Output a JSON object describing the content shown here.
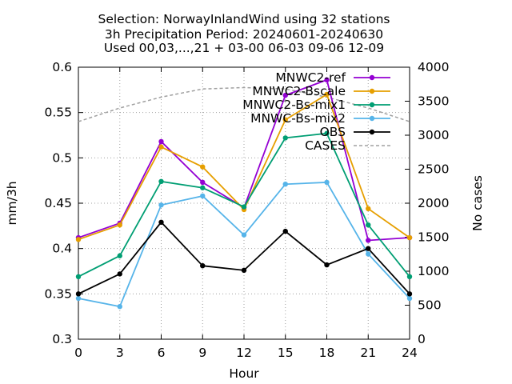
{
  "chart_data": {
    "type": "line",
    "title_lines": [
      "Selection: NorwayInlandWind using    32 stations",
      "3h Precipitation   Period: 20240601-20240630",
      "Used 00,03,...,21 + 03-00 06-03 09-06 12-09"
    ],
    "xlabel": "Hour",
    "ylabel": "mm/3h",
    "y2label": "No cases",
    "x": [
      0,
      3,
      6,
      9,
      12,
      15,
      18,
      21,
      24
    ],
    "xlim": [
      0,
      24
    ],
    "ylim": [
      0.3,
      0.6
    ],
    "y2lim": [
      0,
      4000
    ],
    "xticks": [
      0,
      3,
      6,
      9,
      12,
      15,
      18,
      21,
      24
    ],
    "yticks": [
      0.3,
      0.35,
      0.4,
      0.45,
      0.5,
      0.55,
      0.6
    ],
    "ytick_labels": [
      "0.3",
      "0.35",
      "0.4",
      "0.45",
      "0.5",
      "0.55",
      "0.6"
    ],
    "y2ticks": [
      0,
      500,
      1000,
      1500,
      2000,
      2500,
      3000,
      3500,
      4000
    ],
    "grid": true,
    "legend_position": "top-right",
    "series": [
      {
        "name": "MNWC2-ref",
        "color": "#9400d3",
        "values": [
          0.412,
          0.428,
          0.518,
          0.473,
          0.445,
          0.569,
          0.586,
          0.409,
          0.412
        ]
      },
      {
        "name": "MNWC2-Bscale",
        "color": "#e69f00",
        "values": [
          0.41,
          0.426,
          0.512,
          0.49,
          0.443,
          0.542,
          0.57,
          0.444,
          0.412
        ]
      },
      {
        "name": "MNWC2-Bs-mix1",
        "color": "#009e73",
        "values": [
          0.369,
          0.392,
          0.474,
          0.467,
          0.446,
          0.522,
          0.527,
          0.426,
          0.369
        ]
      },
      {
        "name": "MNWC-Bs-mix2",
        "color": "#56b4e9",
        "values": [
          0.345,
          0.336,
          0.448,
          0.458,
          0.415,
          0.471,
          0.473,
          0.394,
          0.345
        ]
      },
      {
        "name": "OBS",
        "color": "#000000",
        "values": [
          0.35,
          0.372,
          0.429,
          0.381,
          0.376,
          0.419,
          0.382,
          0.4,
          0.35
        ]
      }
    ],
    "cases_series": {
      "name": "CASES",
      "color": "#a0a0a0",
      "axis": "right",
      "values": [
        3200,
        3400,
        3560,
        3680,
        3700,
        3680,
        3560,
        3400,
        3200
      ]
    }
  }
}
